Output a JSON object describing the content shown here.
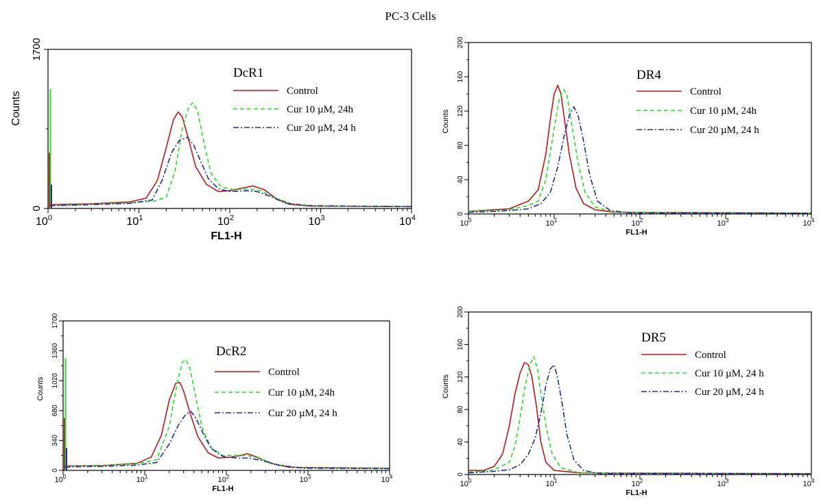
{
  "page_title": "PC-3 Cells",
  "colors": {
    "control": "#c0141a",
    "cur10": "#22dd22",
    "cur20": "#1f2a9e"
  },
  "chart_data": [
    {
      "type": "line",
      "title": "DcR1",
      "xlabel": "FL1-H",
      "ylabel": "Counts",
      "xscale": "log",
      "xlim": [
        1,
        10000
      ],
      "ylim": [
        0,
        1700
      ],
      "yticks": [
        "0",
        "1700"
      ],
      "xticks": [
        "10^0",
        "10^1",
        "10^2",
        "10^3",
        "10^4"
      ],
      "legend_position": "top-right",
      "legend": [
        {
          "label": "Control",
          "style": "solid",
          "color": "#c0141a"
        },
        {
          "label": "Cur 10 µM, 24h",
          "style": "dashed",
          "color": "#22dd22"
        },
        {
          "label": "Cur 20 µM, 24 h",
          "style": "dashdot",
          "color": "#1f2a9e"
        }
      ],
      "series": [
        {
          "name": "Control",
          "points": [
            [
              1.05,
              40
            ],
            [
              3,
              50
            ],
            [
              8,
              70
            ],
            [
              12,
              110
            ],
            [
              16,
              300
            ],
            [
              20,
              650
            ],
            [
              24,
              950
            ],
            [
              27,
              1030
            ],
            [
              30,
              980
            ],
            [
              35,
              750
            ],
            [
              42,
              450
            ],
            [
              55,
              260
            ],
            [
              75,
              180
            ],
            [
              100,
              190
            ],
            [
              140,
              220
            ],
            [
              180,
              240
            ],
            [
              240,
              200
            ],
            [
              320,
              110
            ],
            [
              450,
              45
            ],
            [
              800,
              25
            ],
            [
              10000,
              20
            ]
          ]
        },
        {
          "name": "Cur 10 µM, 24h",
          "points": [
            [
              1.05,
              30
            ],
            [
              3,
              45
            ],
            [
              8,
              60
            ],
            [
              15,
              80
            ],
            [
              20,
              120
            ],
            [
              25,
              400
            ],
            [
              30,
              850
            ],
            [
              35,
              1070
            ],
            [
              39,
              1130
            ],
            [
              44,
              1050
            ],
            [
              52,
              700
            ],
            [
              62,
              380
            ],
            [
              80,
              230
            ],
            [
              110,
              200
            ],
            [
              160,
              210
            ],
            [
              220,
              190
            ],
            [
              320,
              110
            ],
            [
              500,
              45
            ],
            [
              1000,
              25
            ],
            [
              10000,
              20
            ]
          ]
        },
        {
          "name": "Cur 20 µM, 24 h",
          "points": [
            [
              1.05,
              30
            ],
            [
              3,
              40
            ],
            [
              8,
              55
            ],
            [
              14,
              90
            ],
            [
              18,
              300
            ],
            [
              23,
              600
            ],
            [
              28,
              730
            ],
            [
              34,
              760
            ],
            [
              40,
              680
            ],
            [
              48,
              500
            ],
            [
              58,
              320
            ],
            [
              75,
              210
            ],
            [
              100,
              180
            ],
            [
              150,
              190
            ],
            [
              200,
              180
            ],
            [
              280,
              130
            ],
            [
              400,
              60
            ],
            [
              700,
              30
            ],
            [
              10000,
              20
            ]
          ]
        }
      ]
    },
    {
      "type": "line",
      "title": "DR4",
      "xlabel": "FL1-H",
      "ylabel": "Counts",
      "xscale": "log",
      "xlim": [
        1,
        10000
      ],
      "ylim": [
        0,
        200
      ],
      "yticks": [
        "0",
        "40",
        "80",
        "120",
        "160",
        "200"
      ],
      "xticks": [
        "10^0",
        "10^1",
        "10^2",
        "10^3",
        "10^4"
      ],
      "legend_position": "top-right",
      "legend": [
        {
          "label": "Control",
          "style": "solid",
          "color": "#c0141a"
        },
        {
          "label": "Cur 10 µM, 24h",
          "style": "dashed",
          "color": "#22dd22"
        },
        {
          "label": "Cur 20 µM, 24 h",
          "style": "dashdot",
          "color": "#1f2a9e"
        }
      ],
      "series": [
        {
          "name": "Control",
          "points": [
            [
              1,
              3
            ],
            [
              2,
              5
            ],
            [
              3,
              6
            ],
            [
              5,
              15
            ],
            [
              6.5,
              28
            ],
            [
              8,
              70
            ],
            [
              9,
              110
            ],
            [
              10,
              140
            ],
            [
              11,
              150
            ],
            [
              12,
              140
            ],
            [
              13,
              115
            ],
            [
              15,
              70
            ],
            [
              18,
              30
            ],
            [
              22,
              12
            ],
            [
              30,
              5
            ],
            [
              50,
              2
            ],
            [
              10000,
              1
            ]
          ]
        },
        {
          "name": "Cur 10 µM, 24h",
          "points": [
            [
              1,
              3
            ],
            [
              2,
              4
            ],
            [
              3,
              5
            ],
            [
              5,
              10
            ],
            [
              6.5,
              15
            ],
            [
              8,
              40
            ],
            [
              10,
              100
            ],
            [
              11.5,
              135
            ],
            [
              13,
              145
            ],
            [
              14,
              140
            ],
            [
              16,
              105
            ],
            [
              19,
              60
            ],
            [
              23,
              25
            ],
            [
              30,
              8
            ],
            [
              50,
              2
            ],
            [
              10000,
              1
            ]
          ]
        },
        {
          "name": "Cur 20 µM, 24 h",
          "points": [
            [
              1,
              2
            ],
            [
              2,
              3
            ],
            [
              3,
              4
            ],
            [
              5,
              6
            ],
            [
              7,
              12
            ],
            [
              9,
              25
            ],
            [
              11,
              55
            ],
            [
              13,
              90
            ],
            [
              15,
              115
            ],
            [
              17,
              125
            ],
            [
              19,
              115
            ],
            [
              22,
              85
            ],
            [
              26,
              45
            ],
            [
              32,
              15
            ],
            [
              45,
              4
            ],
            [
              80,
              1
            ],
            [
              10000,
              1
            ]
          ]
        }
      ]
    },
    {
      "type": "line",
      "title": "DcR2",
      "xlabel": "FL1-H",
      "ylabel": "Counts",
      "xscale": "log",
      "xlim": [
        1,
        10000
      ],
      "ylim": [
        0,
        1700
      ],
      "yticks": [
        "0",
        "340",
        "680",
        "1020",
        "1360",
        "1700"
      ],
      "xticks": [
        "10^0",
        "10^1",
        "10^2",
        "10^3",
        "10^4"
      ],
      "legend_position": "top-right",
      "legend": [
        {
          "label": "Control",
          "style": "solid",
          "color": "#c0141a"
        },
        {
          "label": "Cur 10 µM, 24h",
          "style": "dashed",
          "color": "#22dd22"
        },
        {
          "label": "Cur 20 µM, 24 h",
          "style": "dashdot",
          "color": "#1f2a9e"
        }
      ],
      "series": [
        {
          "name": "Control",
          "points": [
            [
              1.05,
              50
            ],
            [
              3,
              55
            ],
            [
              8,
              80
            ],
            [
              12,
              150
            ],
            [
              16,
              400
            ],
            [
              20,
              800
            ],
            [
              24,
              990
            ],
            [
              27,
              1000
            ],
            [
              30,
              900
            ],
            [
              36,
              650
            ],
            [
              45,
              380
            ],
            [
              60,
              200
            ],
            [
              80,
              140
            ],
            [
              110,
              150
            ],
            [
              150,
              170
            ],
            [
              180,
              190
            ],
            [
              240,
              150
            ],
            [
              350,
              80
            ],
            [
              600,
              35
            ],
            [
              10000,
              25
            ]
          ]
        },
        {
          "name": "Cur 10 µM, 24h",
          "points": [
            [
              1.05,
              45
            ],
            [
              3,
              55
            ],
            [
              8,
              75
            ],
            [
              14,
              120
            ],
            [
              20,
              500
            ],
            [
              25,
              1000
            ],
            [
              29,
              1230
            ],
            [
              32,
              1260
            ],
            [
              36,
              1150
            ],
            [
              42,
              850
            ],
            [
              50,
              500
            ],
            [
              65,
              260
            ],
            [
              90,
              170
            ],
            [
              130,
              170
            ],
            [
              180,
              170
            ],
            [
              250,
              140
            ],
            [
              400,
              70
            ],
            [
              800,
              30
            ],
            [
              10000,
              25
            ]
          ]
        },
        {
          "name": "Cur 20 µM, 24 h",
          "points": [
            [
              1.05,
              40
            ],
            [
              3,
              45
            ],
            [
              8,
              60
            ],
            [
              14,
              90
            ],
            [
              20,
              300
            ],
            [
              26,
              520
            ],
            [
              32,
              640
            ],
            [
              37,
              670
            ],
            [
              42,
              600
            ],
            [
              52,
              420
            ],
            [
              65,
              250
            ],
            [
              90,
              160
            ],
            [
              130,
              140
            ],
            [
              190,
              140
            ],
            [
              280,
              110
            ],
            [
              450,
              55
            ],
            [
              900,
              25
            ],
            [
              10000,
              20
            ]
          ]
        }
      ]
    },
    {
      "type": "line",
      "title": "DR5",
      "xlabel": "FL1-H",
      "ylabel": "Counts",
      "xscale": "log",
      "xlim": [
        1,
        10000
      ],
      "ylim": [
        0,
        200
      ],
      "yticks": [
        "0",
        "40",
        "80",
        "120",
        "160",
        "200"
      ],
      "xticks": [
        "10^0",
        "10^1",
        "10^2",
        "10^3",
        "10^4"
      ],
      "legend_position": "top-right",
      "legend": [
        {
          "label": "Control",
          "style": "solid",
          "color": "#c0141a"
        },
        {
          "label": "Cur 10 µM, 24 h",
          "style": "dashed",
          "color": "#22dd22"
        },
        {
          "label": "Cur 20 µM, 24 h",
          "style": "dashdot",
          "color": "#1f2a9e"
        }
      ],
      "series": [
        {
          "name": "Control",
          "points": [
            [
              1,
              5
            ],
            [
              1.5,
              5
            ],
            [
              2,
              10
            ],
            [
              2.5,
              25
            ],
            [
              3,
              60
            ],
            [
              3.5,
              100
            ],
            [
              4,
              125
            ],
            [
              4.5,
              138
            ],
            [
              5,
              135
            ],
            [
              5.5,
              120
            ],
            [
              6.2,
              85
            ],
            [
              7,
              40
            ],
            [
              8,
              15
            ],
            [
              10,
              5
            ],
            [
              20,
              2
            ],
            [
              10000,
              1
            ]
          ]
        },
        {
          "name": "Cur 10 µM, 24 h",
          "points": [
            [
              1,
              3
            ],
            [
              1.5,
              4
            ],
            [
              2,
              6
            ],
            [
              3,
              15
            ],
            [
              3.5,
              35
            ],
            [
              4,
              70
            ],
            [
              4.6,
              110
            ],
            [
              5.2,
              135
            ],
            [
              5.8,
              145
            ],
            [
              6.4,
              130
            ],
            [
              7,
              100
            ],
            [
              8,
              60
            ],
            [
              9.5,
              25
            ],
            [
              12,
              8
            ],
            [
              20,
              2
            ],
            [
              10000,
              1
            ]
          ]
        },
        {
          "name": "Cur 20 µM, 24 h",
          "points": [
            [
              1,
              2
            ],
            [
              2,
              4
            ],
            [
              3,
              6
            ],
            [
              4,
              12
            ],
            [
              5,
              25
            ],
            [
              6,
              45
            ],
            [
              7,
              75
            ],
            [
              8,
              110
            ],
            [
              9,
              130
            ],
            [
              10,
              135
            ],
            [
              11,
              118
            ],
            [
              12.5,
              85
            ],
            [
              14,
              50
            ],
            [
              17,
              18
            ],
            [
              22,
              5
            ],
            [
              35,
              1
            ],
            [
              10000,
              1
            ]
          ]
        }
      ]
    }
  ]
}
